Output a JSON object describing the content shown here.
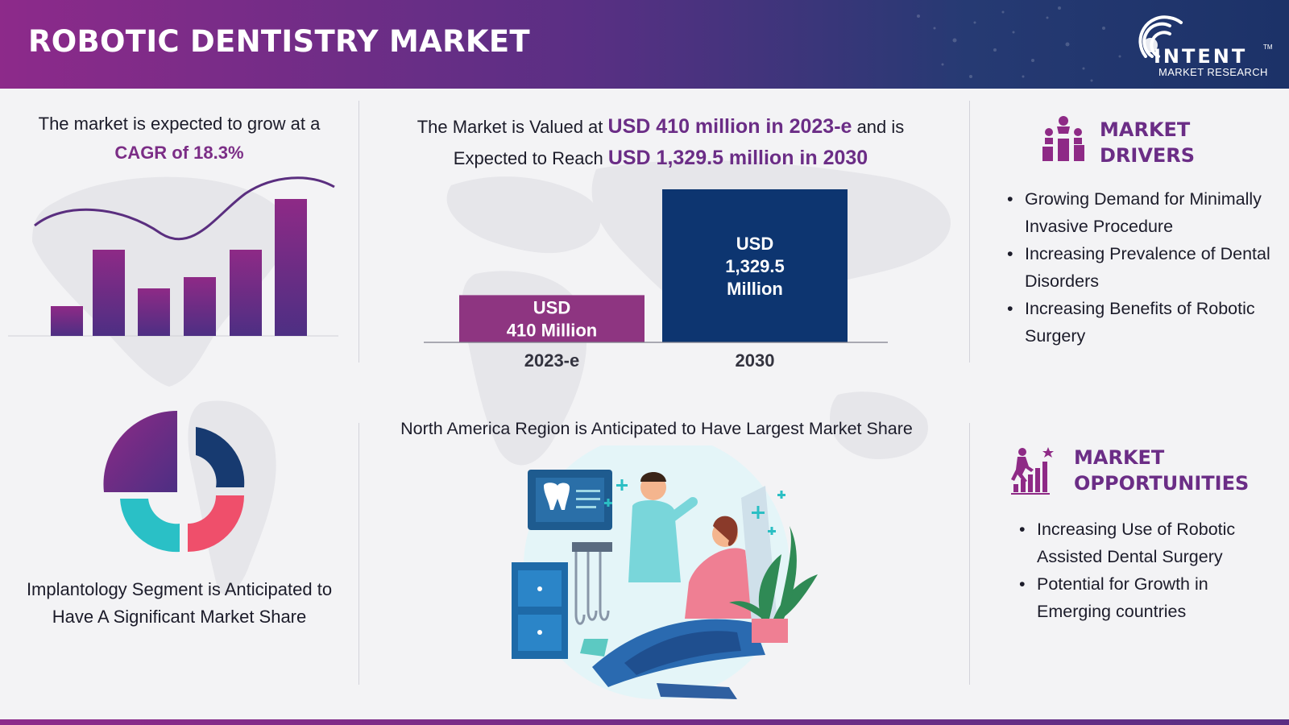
{
  "header": {
    "title": "ROBOTIC DENTISTRY MARKET",
    "logo": {
      "name": "INTENT",
      "subtitle": "MARKET RESEARCH",
      "trademark": "TM"
    }
  },
  "cagr": {
    "text": "The market is expected to grow at a",
    "highlight": "CAGR of 18.3%"
  },
  "market_value": {
    "line1_pre": "The Market is Valued at",
    "line1_hl": "USD 410 million in 2023-e",
    "line1_post": "and is",
    "line2_pre": "Expected to Reach",
    "line2_hl": "USD 1,329.5 million in 2030"
  },
  "segment": {
    "text": "Implantology Segment is Anticipated to Have A Significant Market Share"
  },
  "region": {
    "text": "North America Region is Anticipated to Have Largest Market Share"
  },
  "drivers": {
    "heading_line1": "MARKET",
    "heading_line2": "DRIVERS",
    "items": [
      "Growing Demand for Minimally Invasive Procedure",
      "Increasing Prevalence of Dental Disorders",
      "Increasing Benefits of Robotic Surgery"
    ]
  },
  "opportunities": {
    "heading_line1": "MARKET",
    "heading_line2": "OPPORTUNITIES",
    "items": [
      "Increasing Use of Robotic Assisted Dental Surgery",
      "Potential for Growth in Emerging countries"
    ]
  },
  "colors": {
    "purple": "#8e3581",
    "navy": "#0d3570",
    "accent": "#6b2d86",
    "teal": "#2bbfc4",
    "coral": "#f0506e"
  },
  "chart_data": [
    {
      "type": "bar",
      "categories": [
        "2023-e",
        "2030"
      ],
      "values": [
        410,
        1329.5
      ],
      "bar_labels": [
        "USD\n410 Million",
        "USD\n1,329.5\nMillion"
      ],
      "colors": [
        "#8e3581",
        "#0d3570"
      ],
      "title": "",
      "xlabel": "",
      "ylabel": "",
      "ylim": [
        0,
        1329.5
      ],
      "grid": false
    }
  ]
}
